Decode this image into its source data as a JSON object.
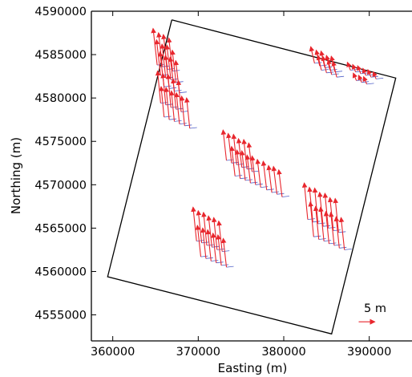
{
  "chart_data": {
    "type": "scatter",
    "xlabel": "Easting (m)",
    "ylabel": "Northing (m)",
    "xlim": [
      357500,
      395000
    ],
    "ylim": [
      4552000,
      4590000
    ],
    "x_ticks": [
      360000,
      370000,
      380000,
      390000
    ],
    "y_ticks": [
      4555000,
      4560000,
      4565000,
      4570000,
      4575000,
      4580000,
      4585000,
      4590000
    ],
    "x_tick_labels": [
      "360000",
      "370000",
      "380000",
      "390000"
    ],
    "y_tick_labels": [
      "4555000",
      "4560000",
      "4565000",
      "4570000",
      "4575000",
      "4580000",
      "4585000",
      "4590000"
    ],
    "grid": false,
    "boundary": {
      "x": [
        366900,
        393100,
        385600,
        359400,
        366900
      ],
      "y": [
        4589000,
        4582300,
        4552800,
        4559400,
        4589000
      ]
    },
    "scale_arrow": {
      "label": "5 m",
      "x": 389700,
      "y": 4554200
    },
    "clusters": [
      {
        "x": [
          365200,
          365800,
          366400,
          367000,
          365600,
          366200,
          366800,
          367400,
          366000,
          366600,
          367200,
          367800
        ],
        "y": [
          4583800,
          4583600,
          4583300,
          4583100,
          4582600,
          4582300,
          4582100,
          4581800,
          4581300,
          4581100,
          4580800,
          4580600
        ],
        "dx": [
          1200,
          1100,
          1200,
          1100,
          1200,
          1100,
          1200,
          1100,
          1200,
          1100,
          1200,
          1100
        ],
        "dy": [
          -4200,
          -3900,
          -4000,
          -3800,
          -4100,
          -3900,
          -4000,
          -3700,
          -4000,
          -3800,
          -3900,
          -3700
        ]
      },
      {
        "x": [
          365600,
          366200,
          366800,
          367400,
          368000,
          366000,
          366600,
          367200,
          367800,
          368400,
          369000
        ],
        "y": [
          4579400,
          4579200,
          4578900,
          4578700,
          4578400,
          4577800,
          4577500,
          4577300,
          4577000,
          4576800,
          4576500
        ],
        "dx": [
          900,
          900,
          850,
          900,
          850,
          850,
          900,
          850,
          900,
          850,
          900
        ],
        "dy": [
          -3700,
          -3600,
          -3800,
          -3500,
          -3600,
          -3500,
          -3700,
          -3500,
          -3600,
          -3400,
          -3500
        ]
      },
      {
        "x": [
          383600,
          384200,
          384800,
          385400,
          386000,
          384400,
          385000,
          385600,
          386200
        ],
        "y": [
          4584000,
          4583700,
          4583500,
          4583200,
          4583000,
          4583200,
          4582900,
          4582700,
          4582400
        ],
        "dx": [
          1100,
          1000,
          1100,
          1000,
          1100,
          1000,
          1100,
          1000,
          1100
        ],
        "dy": [
          -1900,
          -1800,
          -1900,
          -1700,
          -1800,
          -1700,
          -1900,
          -1700,
          -1800
        ]
      },
      {
        "x": [
          387800,
          388400,
          389000,
          389600,
          390200,
          390800,
          388500,
          389100,
          389700
        ],
        "y": [
          4583200,
          4583000,
          4582800,
          4582600,
          4582400,
          4582200,
          4582000,
          4581800,
          4581600
        ],
        "dx": [
          900,
          850,
          900,
          850,
          900,
          850,
          900,
          850,
          900
        ],
        "dy": [
          -900,
          -850,
          -900,
          -800,
          -850,
          -800,
          -850,
          -800,
          -850
        ]
      },
      {
        "x": [
          373300,
          373900,
          374500,
          375100,
          375700,
          376300,
          374300,
          374900,
          375500,
          376100,
          376700,
          377300,
          378000,
          378600,
          379200,
          379800
        ],
        "y": [
          4572800,
          4572500,
          4572300,
          4572000,
          4571800,
          4571500,
          4571000,
          4570700,
          4570500,
          4570200,
          4570000,
          4569700,
          4569400,
          4569100,
          4568900,
          4568600
        ],
        "dx": [
          1000,
          1000,
          950,
          1000,
          950,
          1000,
          1000,
          950,
          1000,
          950,
          1000,
          950,
          1000,
          950,
          1000,
          950
        ],
        "dy": [
          -3500,
          -3400,
          -3500,
          -3300,
          -3400,
          -3300,
          -3400,
          -3300,
          -3400,
          -3200,
          -3300,
          -3200,
          -3300,
          -3100,
          -3200,
          -3100
        ]
      },
      {
        "x": [
          382800,
          383400,
          384000,
          384600,
          385200,
          385800,
          386400,
          383500,
          384100,
          384700,
          385300,
          385900,
          386500,
          387100
        ],
        "y": [
          4566000,
          4565700,
          4565500,
          4565200,
          4565000,
          4564700,
          4564500,
          4564000,
          4563700,
          4563500,
          4563200,
          4563000,
          4562700,
          4562500
        ],
        "dx": [
          1000,
          1000,
          950,
          1000,
          950,
          1000,
          950,
          1000,
          950,
          1000,
          950,
          1000,
          950,
          1000
        ],
        "dy": [
          -4200,
          -4000,
          -4100,
          -3900,
          -4000,
          -3800,
          -3900,
          -4000,
          -3800,
          -3900,
          -3700,
          -3800,
          -3600,
          -3700
        ]
      },
      {
        "x": [
          369800,
          370400,
          371000,
          371600,
          372200,
          372800,
          370300,
          370900,
          371500,
          372100,
          372700,
          373300
        ],
        "y": [
          4563500,
          4563300,
          4563000,
          4562800,
          4562500,
          4562300,
          4561700,
          4561500,
          4561200,
          4561000,
          4560700,
          4560500
        ],
        "dx": [
          1000,
          1000,
          950,
          1000,
          950,
          1000,
          1000,
          950,
          1000,
          950,
          1000,
          950
        ],
        "dy": [
          -3900,
          -3700,
          -3800,
          -3600,
          -3700,
          -3500,
          -3600,
          -3500,
          -3600,
          -3400,
          -3500,
          -3300
        ]
      }
    ]
  }
}
